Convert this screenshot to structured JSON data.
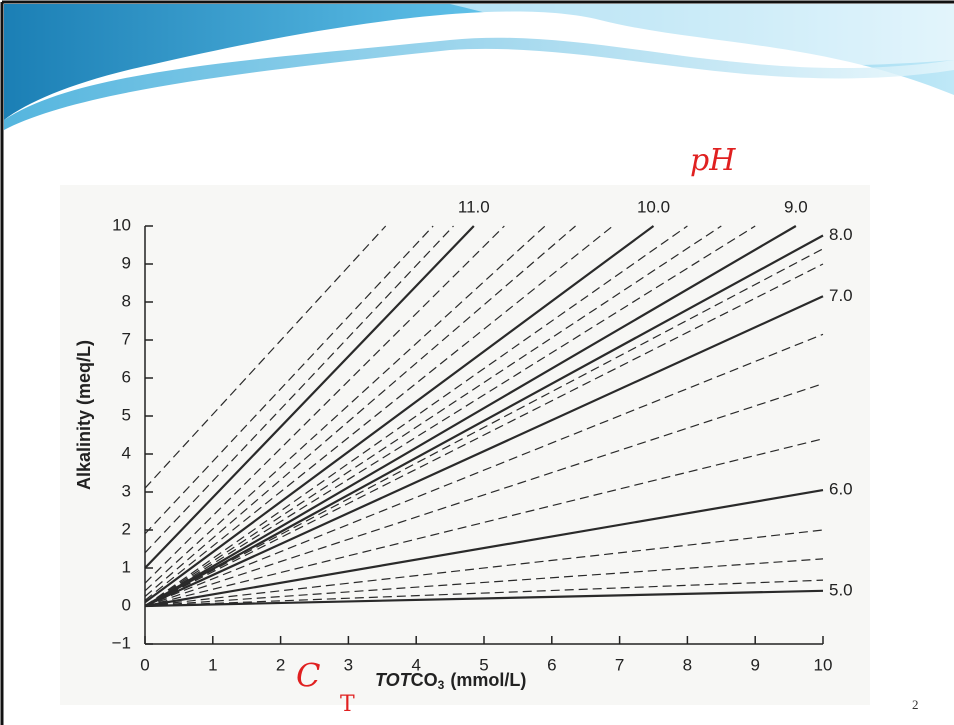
{
  "chart_data": {
    "type": "line",
    "ylabel": "Alkalinity (meq/L)",
    "xlabel": {
      "italic": "TOT",
      "main": "CO",
      "sub": "3",
      "unit": "(mmol/L)"
    },
    "xlim": [
      0,
      10
    ],
    "xticks": [
      0,
      1,
      2,
      3,
      4,
      5,
      6,
      7,
      8,
      9,
      10
    ],
    "ylim": [
      -1,
      10
    ],
    "yticks": [
      {
        "value": -1,
        "label": "−1"
      },
      0,
      1,
      2,
      3,
      4,
      5,
      6,
      7,
      8,
      9,
      10
    ],
    "series": [
      {
        "name": "11.0",
        "color": "#2a2a2a",
        "x": [
          0,
          4.85
        ],
        "values": [
          1.0,
          10
        ]
      },
      {
        "name": "10.0",
        "color": "#2a2a2a",
        "x": [
          0,
          7.5
        ],
        "values": [
          0.1,
          10
        ]
      },
      {
        "name": "9.0",
        "color": "#2a2a2a",
        "x": [
          0,
          9.6
        ],
        "values": [
          0,
          10
        ]
      },
      {
        "name": "8.0",
        "color": "#2a2a2a",
        "x": [
          0,
          10
        ],
        "values": [
          0,
          9.75
        ]
      },
      {
        "name": "7.0",
        "color": "#2a2a2a",
        "x": [
          0,
          10
        ],
        "values": [
          0,
          8.15
        ]
      },
      {
        "name": "6.0",
        "color": "#2a2a2a",
        "x": [
          0,
          10
        ],
        "values": [
          0,
          3.05
        ]
      },
      {
        "name": "5.0",
        "color": "#2a2a2a",
        "x": [
          0,
          10
        ],
        "values": [
          0,
          0.4
        ]
      },
      {
        "color": "#2a2a2a",
        "dash": true,
        "x": [
          0,
          3.55
        ],
        "values": [
          3.1,
          10
        ]
      },
      {
        "color": "#2a2a2a",
        "dash": true,
        "x": [
          0,
          4.25
        ],
        "values": [
          1.9,
          10
        ]
      },
      {
        "color": "#2a2a2a",
        "dash": true,
        "x": [
          0,
          4.55
        ],
        "values": [
          1.4,
          10
        ]
      },
      {
        "color": "#2a2a2a",
        "dash": true,
        "x": [
          0,
          5.3
        ],
        "values": [
          0.6,
          10
        ]
      },
      {
        "color": "#2a2a2a",
        "dash": true,
        "x": [
          0,
          5.9
        ],
        "values": [
          0.4,
          10
        ]
      },
      {
        "color": "#2a2a2a",
        "dash": true,
        "x": [
          0,
          6.35
        ],
        "values": [
          0.25,
          10
        ]
      },
      {
        "color": "#2a2a2a",
        "dash": true,
        "x": [
          0,
          6.9
        ],
        "values": [
          0.15,
          10
        ]
      },
      {
        "color": "#2a2a2a",
        "dash": true,
        "x": [
          0,
          8.0
        ],
        "values": [
          0,
          10
        ]
      },
      {
        "color": "#2a2a2a",
        "dash": true,
        "x": [
          0,
          8.5
        ],
        "values": [
          0,
          10
        ]
      },
      {
        "color": "#2a2a2a",
        "dash": true,
        "x": [
          0,
          9.0
        ],
        "values": [
          0,
          10
        ]
      },
      {
        "color": "#2a2a2a",
        "dash": true,
        "x": [
          0,
          10
        ],
        "values": [
          0,
          9.4
        ]
      },
      {
        "color": "#2a2a2a",
        "dash": true,
        "x": [
          0,
          10
        ],
        "values": [
          0,
          9.0
        ]
      },
      {
        "color": "#2a2a2a",
        "dash": true,
        "x": [
          0,
          10
        ],
        "values": [
          0,
          7.15
        ]
      },
      {
        "color": "#2a2a2a",
        "dash": true,
        "x": [
          0,
          10
        ],
        "values": [
          0,
          5.85
        ]
      },
      {
        "color": "#2a2a2a",
        "dash": true,
        "x": [
          0,
          10
        ],
        "values": [
          0,
          4.4
        ]
      },
      {
        "color": "#2a2a2a",
        "dash": true,
        "x": [
          0,
          10
        ],
        "values": [
          0,
          2.0
        ]
      },
      {
        "color": "#2a2a2a",
        "dash": true,
        "x": [
          0,
          10
        ],
        "values": [
          0,
          1.24
        ]
      },
      {
        "color": "#2a2a2a",
        "dash": true,
        "x": [
          0,
          10
        ],
        "values": [
          0,
          0.68
        ]
      }
    ],
    "annotations": {
      "ph": "pH",
      "ct": "C",
      "ct_sub": "T"
    }
  },
  "page_number": "2"
}
